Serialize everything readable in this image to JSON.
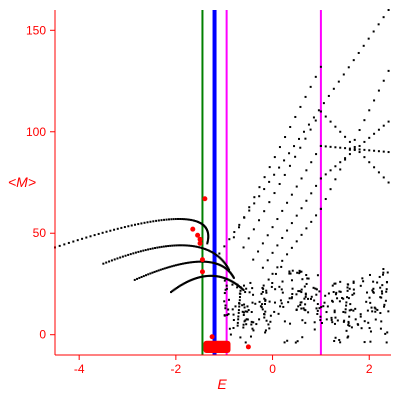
{
  "chart_data": {
    "type": "scatter",
    "title": "",
    "xlabel": "E",
    "ylabel": "<M>",
    "xlim": [
      -4.5,
      2.45
    ],
    "ylim": [
      -10,
      160
    ],
    "x_ticks": [
      -4,
      -2,
      0,
      2
    ],
    "x_tick_labels": [
      "-4",
      "-2",
      "0",
      "2"
    ],
    "y_ticks": [
      0,
      50,
      100,
      150
    ],
    "y_tick_labels": [
      "0",
      "50",
      "100",
      "150"
    ],
    "grid": false,
    "legend": false,
    "colors": {
      "axes": "#ff0000",
      "points": "#000000",
      "highlight_points": "#ff0000",
      "green_line": "#008000",
      "blue_line": "#0000ff",
      "magenta_line": "#ff00ff"
    },
    "vertical_lines": [
      {
        "color": "green",
        "x": -1.45
      },
      {
        "color": "blue",
        "x": -1.2
      },
      {
        "color": "magenta",
        "x": -0.95
      },
      {
        "color": "magenta",
        "x": 1.0
      }
    ],
    "branches": [
      {
        "x_start": -4.5,
        "y_start": 43,
        "x_mid": -2.0,
        "y_mid": 57,
        "x_end": -1.35,
        "y_end": 45
      },
      {
        "x_start": -3.5,
        "y_start": 35,
        "x_mid": -1.8,
        "y_mid": 44,
        "x_end": -0.9,
        "y_end": 32
      },
      {
        "x_start": -2.85,
        "y_start": 27,
        "x_mid": -1.5,
        "y_mid": 36,
        "x_end": -0.8,
        "y_end": 28
      },
      {
        "x_start": -2.1,
        "y_start": 21,
        "x_mid": -1.3,
        "y_mid": 29,
        "x_end": -0.6,
        "y_end": 22
      }
    ],
    "fan_lines": [
      {
        "x_start": -1.1,
        "y_start": 40,
        "x_end": 2.4,
        "y_end": 160
      },
      {
        "x_start": -0.8,
        "y_start": 48,
        "x_end": 1.0,
        "y_end": 132
      },
      {
        "x_start": -0.6,
        "y_start": 43,
        "x_end": 1.0,
        "y_end": 110
      },
      {
        "x_start": -0.4,
        "y_start": 37,
        "x_end": 1.0,
        "y_end": 93
      },
      {
        "x_start": -0.2,
        "y_start": 33,
        "x_end": 1.0,
        "y_end": 77
      },
      {
        "x_start": 0.0,
        "y_start": 30,
        "x_end": 1.0,
        "y_end": 62
      },
      {
        "x_start": 1.0,
        "y_start": 62,
        "x_end": 2.4,
        "y_end": 130
      },
      {
        "x_start": 1.0,
        "y_start": 77,
        "x_end": 2.4,
        "y_end": 105
      },
      {
        "x_start": 1.0,
        "y_start": 93,
        "x_end": 2.4,
        "y_end": 90
      },
      {
        "x_start": 1.0,
        "y_start": 110,
        "x_end": 2.4,
        "y_end": 75
      }
    ],
    "highlight_points": [
      {
        "x": -1.65,
        "y": 52
      },
      {
        "x": -1.55,
        "y": 49
      },
      {
        "x": -1.5,
        "y": 47
      },
      {
        "x": -1.5,
        "y": 45
      },
      {
        "x": -1.45,
        "y": 37
      },
      {
        "x": -1.45,
        "y": 31
      },
      {
        "x": -1.4,
        "y": 67
      },
      {
        "x": -1.25,
        "y": -1
      },
      {
        "x": -0.5,
        "y": -6
      }
    ],
    "cluster": {
      "x_center": -1.15,
      "y_center": -6,
      "x_half_width": 0.28,
      "y_half_height": 3
    }
  }
}
